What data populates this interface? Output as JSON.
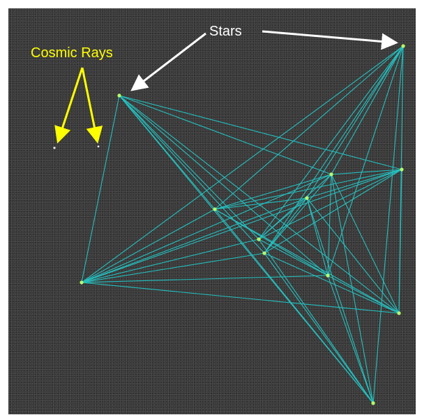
{
  "annotations": {
    "stars_label": "Stars",
    "cosmic_rays_label": "Cosmic Rays"
  },
  "colors": {
    "background": "#3a3a3a",
    "connection_line": "#23c7c7",
    "star_dot": "#b6ff6a",
    "stars_annotation": "#ffffff",
    "cosmic_rays_annotation": "#ffff00"
  }
}
